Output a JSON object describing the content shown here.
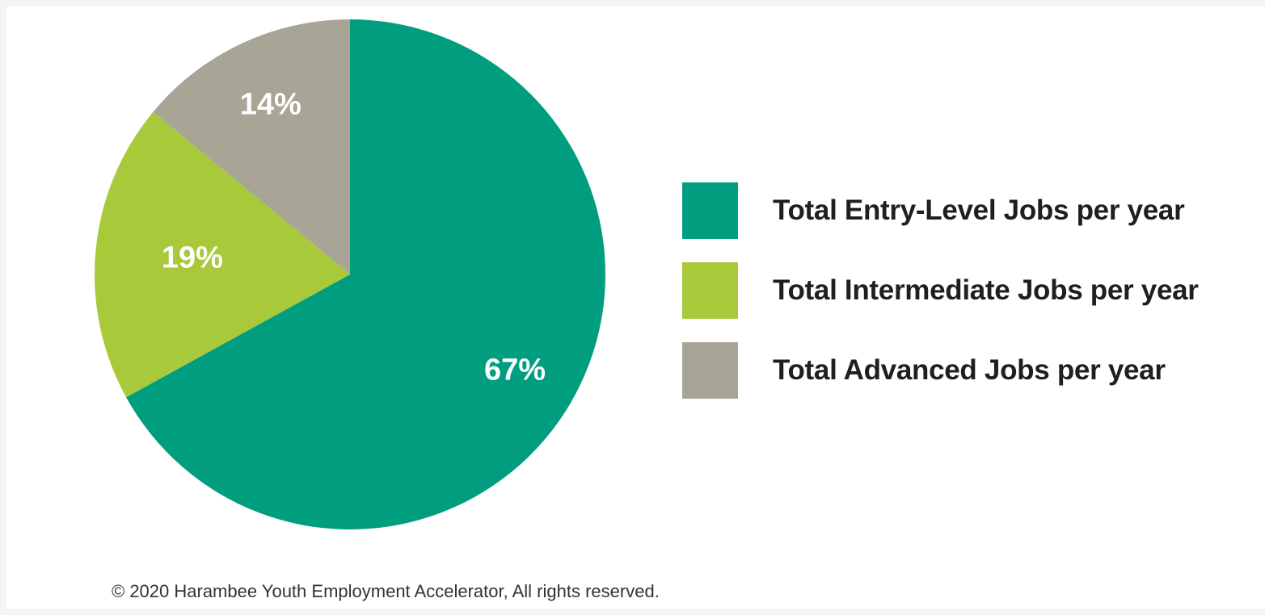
{
  "chart_data": {
    "type": "pie",
    "title": "",
    "slices": [
      {
        "name": "Total Entry-Level Jobs per year",
        "value": 67,
        "label": "67%",
        "color": "#009e7e"
      },
      {
        "name": "Total Intermediate Jobs per year",
        "value": 19,
        "label": "19%",
        "color": "#a8c93a"
      },
      {
        "name": "Total Advanced Jobs per year",
        "value": 14,
        "label": "14%",
        "color": "#a8a596"
      }
    ],
    "start_angle": "12 o'clock",
    "direction": "clockwise",
    "legend_placement": "right"
  },
  "footer": {
    "copyright": "© 2020 Harambee Youth Employment Accelerator, All rights reserved."
  }
}
